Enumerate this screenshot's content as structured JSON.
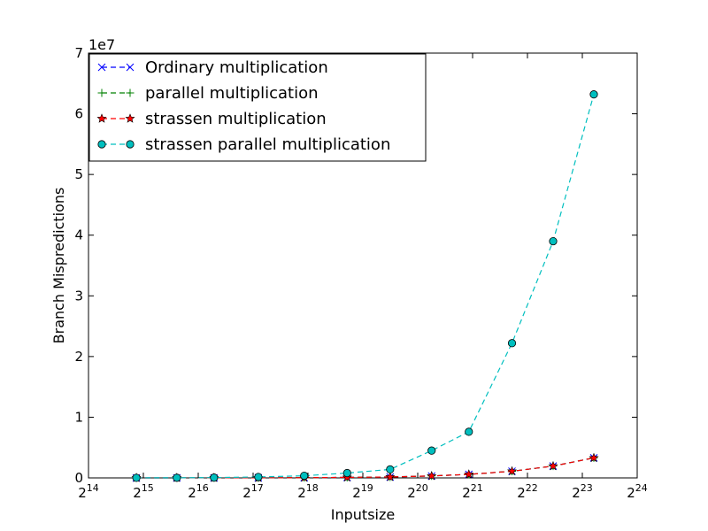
{
  "chart_data": {
    "type": "line",
    "title": "",
    "xlabel": "Inputsize",
    "ylabel": "Branch Mispredictions",
    "x_scale": "log2",
    "xlim": [
      16384,
      16777216
    ],
    "ylim": [
      0,
      70000000
    ],
    "y_offset_label": "1e7",
    "x_ticks": [
      {
        "base": "2",
        "exp": "14",
        "value": 16384
      },
      {
        "base": "2",
        "exp": "15",
        "value": 32768
      },
      {
        "base": "2",
        "exp": "16",
        "value": 65536
      },
      {
        "base": "2",
        "exp": "17",
        "value": 131072
      },
      {
        "base": "2",
        "exp": "18",
        "value": 262144
      },
      {
        "base": "2",
        "exp": "19",
        "value": 524288
      },
      {
        "base": "2",
        "exp": "20",
        "value": 1048576
      },
      {
        "base": "2",
        "exp": "21",
        "value": 2097152
      },
      {
        "base": "2",
        "exp": "22",
        "value": 4194304
      },
      {
        "base": "2",
        "exp": "23",
        "value": 8388608
      },
      {
        "base": "2",
        "exp": "24",
        "value": 16777216
      }
    ],
    "y_ticks": [
      {
        "label": "0",
        "value": 0
      },
      {
        "label": "1",
        "value": 10000000
      },
      {
        "label": "2",
        "value": 20000000
      },
      {
        "label": "3",
        "value": 30000000
      },
      {
        "label": "4",
        "value": 40000000
      },
      {
        "label": "5",
        "value": 50000000
      },
      {
        "label": "6",
        "value": 60000000
      },
      {
        "label": "7",
        "value": 70000000
      }
    ],
    "x": [
      30000,
      50000,
      80000,
      140000,
      250000,
      430000,
      740000,
      1250000,
      2000000,
      3450000,
      5800000,
      9700000
    ],
    "series": [
      {
        "name": "Ordinary multiplication",
        "color": "#0000ff",
        "marker": "x",
        "values": [
          3000,
          6000,
          10000,
          20000,
          40000,
          80000,
          150000,
          320000,
          580000,
          1100000,
          1950000,
          3300000
        ]
      },
      {
        "name": "parallel multiplication",
        "color": "#008000",
        "marker": "+",
        "values": [
          3000,
          6000,
          10000,
          20000,
          40000,
          80000,
          150000,
          320000,
          580000,
          1100000,
          1950000,
          3300000
        ]
      },
      {
        "name": "strassen multiplication",
        "color": "#ff0000",
        "marker": "star",
        "values": [
          3000,
          6000,
          10000,
          20000,
          40000,
          80000,
          150000,
          320000,
          580000,
          1100000,
          1950000,
          3300000
        ]
      },
      {
        "name": "strassen parallel multiplication",
        "color": "#00bfbf",
        "marker": "o",
        "values": [
          10000,
          20000,
          50000,
          150000,
          350000,
          800000,
          1400000,
          4500000,
          7600000,
          22200000,
          39000000,
          63200000
        ]
      }
    ],
    "legend_position": "top-left",
    "grid": false
  }
}
